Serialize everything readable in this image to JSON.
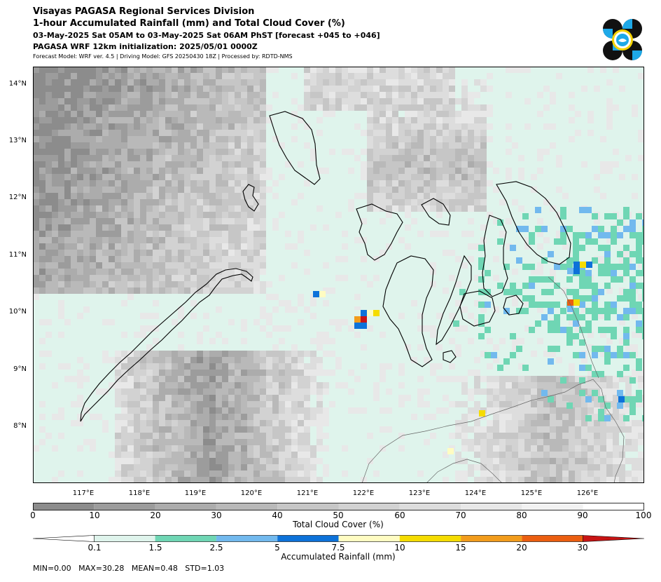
{
  "header": {
    "division": "Visayas PAGASA Regional Services Division",
    "product": "1-hour Accumulated Rainfall (mm) and Total Cloud Cover (%)",
    "valid": "03-May-2025 Sat 05AM to 03-May-2025 Sat 06AM PhST [forecast +045 to +046]",
    "init": "PAGASA WRF 12km initialization: 2025/05/01 0000Z",
    "model": "Forecast Model: WRF ver. 4.5 | Driving Model: GFS 20250430 18Z | Processed by: RDTD-NMS"
  },
  "map": {
    "lat_ticks": [
      "14°N",
      "13°N",
      "12°N",
      "11°N",
      "10°N",
      "9°N",
      "8°N"
    ],
    "lon_ticks": [
      "117°E",
      "118°E",
      "119°E",
      "120°E",
      "121°E",
      "122°E",
      "123°E",
      "124°E",
      "125°E",
      "126°E"
    ],
    "lon_range": [
      116.0,
      126.9
    ],
    "lat_range": [
      7.0,
      14.3
    ]
  },
  "cloud_legend": {
    "title": "Total Cloud Cover (%)",
    "ticks": [
      "0",
      "10",
      "20",
      "30",
      "40",
      "50",
      "60",
      "70",
      "80",
      "90",
      "100"
    ],
    "colors": [
      "#8c8c8c",
      "#9c9c9c",
      "#acacac",
      "#b9b9b9",
      "#c6c6c6",
      "#d2d2d2",
      "#dddddd",
      "#e8e8e8",
      "#f2f2f2",
      "#ffffff"
    ]
  },
  "rain_legend": {
    "title": "Accumulated Rainfall (mm)",
    "ticks": [
      "0.1",
      "1.5",
      "2.5",
      "5",
      "7.5",
      "10",
      "15",
      "20",
      "30"
    ],
    "colors": [
      "#dff4ec",
      "#6fd6b4",
      "#72b9ee",
      "#0d72d9",
      "#fffcc2",
      "#f5dc00",
      "#f29c1c",
      "#eb5e10",
      "#c81414"
    ]
  },
  "stats": {
    "line": "MIN=0.00   MAX=30.28   MEAN=0.48   STD=1.03"
  }
}
